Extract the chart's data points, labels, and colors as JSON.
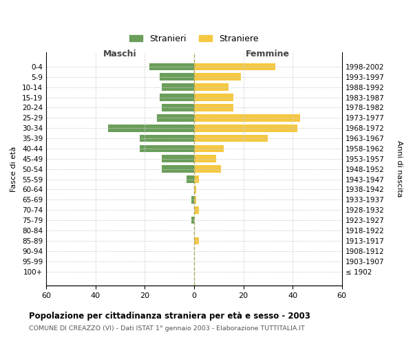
{
  "age_groups": [
    "0-4",
    "5-9",
    "10-14",
    "15-19",
    "20-24",
    "25-29",
    "30-34",
    "35-39",
    "40-44",
    "45-49",
    "50-54",
    "55-59",
    "60-64",
    "65-69",
    "70-74",
    "75-79",
    "80-84",
    "85-89",
    "90-94",
    "95-99",
    "100+"
  ],
  "birth_years": [
    "1998-2002",
    "1993-1997",
    "1988-1992",
    "1983-1987",
    "1978-1982",
    "1973-1977",
    "1968-1972",
    "1963-1967",
    "1958-1962",
    "1953-1957",
    "1948-1952",
    "1943-1947",
    "1938-1942",
    "1933-1937",
    "1928-1932",
    "1923-1927",
    "1918-1922",
    "1913-1917",
    "1908-1912",
    "1903-1907",
    "≤ 1902"
  ],
  "maschi": [
    18,
    14,
    13,
    14,
    13,
    15,
    35,
    22,
    22,
    13,
    13,
    3,
    0,
    1,
    0,
    1,
    0,
    0,
    0,
    0,
    0
  ],
  "femmine": [
    33,
    19,
    14,
    16,
    16,
    43,
    42,
    30,
    12,
    9,
    11,
    2,
    1,
    1,
    2,
    0,
    0,
    2,
    0,
    0,
    0
  ],
  "color_maschi": "#6a9e5a",
  "color_femmine": "#f5c842",
  "title": "Popolazione per cittadinanza straniera per età e sesso - 2003",
  "subtitle": "COMUNE DI CREAZZO (VI) - Dati ISTAT 1° gennaio 2003 - Elaborazione TUTTITALIA.IT",
  "ylabel_left": "Fasce di età",
  "ylabel_right": "Anni di nascita",
  "xlabel_maschi": "Maschi",
  "xlabel_femmine": "Femmine",
  "legend_maschi": "Stranieri",
  "legend_femmine": "Straniere",
  "xlim": 60,
  "background_color": "#ffffff",
  "grid_color": "#cccccc"
}
